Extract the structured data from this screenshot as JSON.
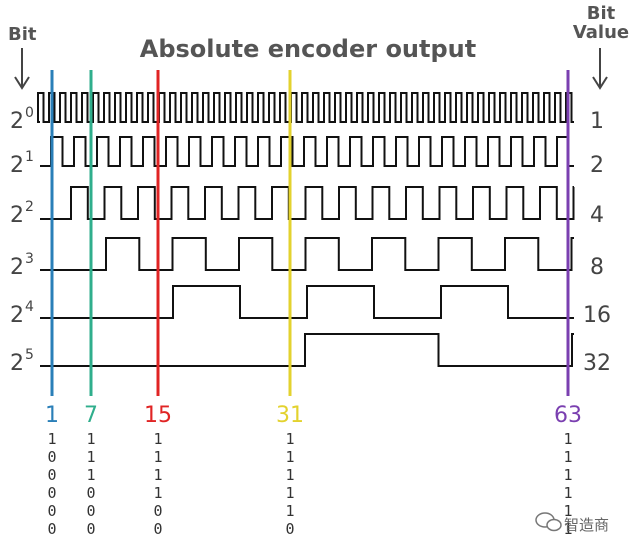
{
  "title": "Absolute encoder output",
  "header_left": "Bit",
  "header_right_line1": "Bit",
  "header_right_line2": "Value",
  "rows": [
    {
      "base": "2",
      "exp": "0",
      "value": "1"
    },
    {
      "base": "2",
      "exp": "1",
      "value": "2"
    },
    {
      "base": "2",
      "exp": "2",
      "value": "4"
    },
    {
      "base": "2",
      "exp": "3",
      "value": "8"
    },
    {
      "base": "2",
      "exp": "4",
      "value": "16"
    },
    {
      "base": "2",
      "exp": "5",
      "value": "32"
    }
  ],
  "markers": [
    {
      "label": "1",
      "color": "#2a7fb8",
      "bits": [
        "1",
        "0",
        "0",
        "0",
        "0",
        "0"
      ]
    },
    {
      "label": "7",
      "color": "#2fae8c",
      "bits": [
        "1",
        "1",
        "1",
        "0",
        "0",
        "0"
      ]
    },
    {
      "label": "15",
      "color": "#e02424",
      "bits": [
        "1",
        "1",
        "1",
        "1",
        "0",
        "0"
      ]
    },
    {
      "label": "31",
      "color": "#e3d22e",
      "bits": [
        "1",
        "1",
        "1",
        "1",
        "1",
        "0"
      ]
    },
    {
      "label": "63",
      "color": "#7a3fb0",
      "bits": [
        "1",
        "1",
        "1",
        "1",
        "1",
        "1"
      ]
    }
  ],
  "watermark": "智造商",
  "icons": {
    "watermark_logo": "wechat-logo-icon",
    "left_arrow": "arrow-down-icon",
    "right_arrow": "arrow-down-icon"
  }
}
